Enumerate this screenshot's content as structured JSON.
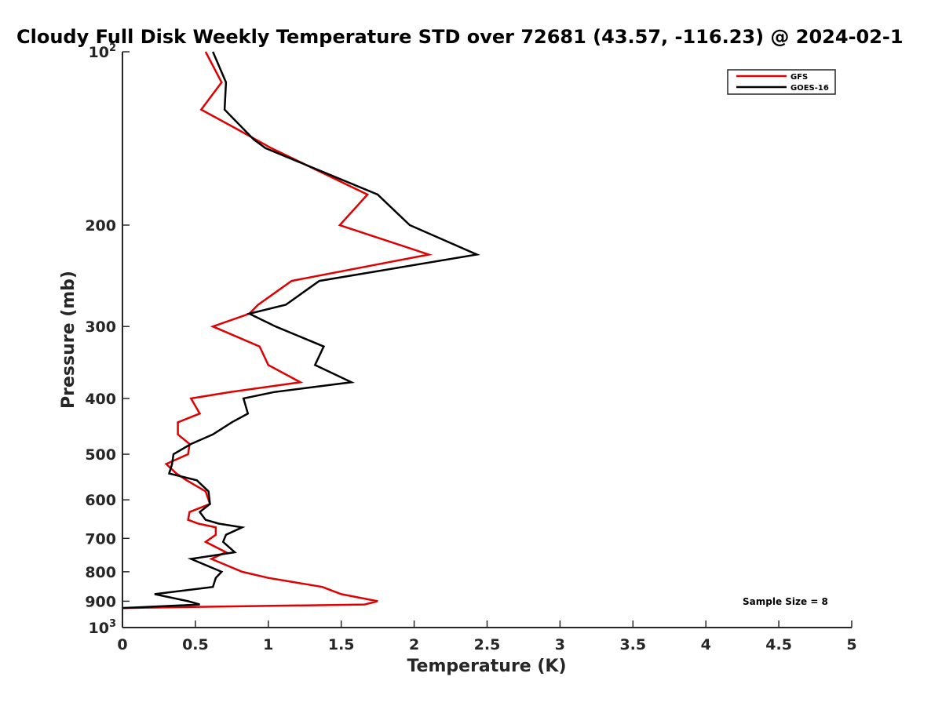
{
  "chart_data": {
    "type": "line",
    "title": "Cloudy Full Disk Weekly Temperature STD over 72681 (43.57, -116.23) @ 2024-02-1",
    "xlabel": "Temperature (K)",
    "ylabel": "Pressure (mb)",
    "xlim": [
      0,
      5
    ],
    "ylim": [
      100,
      1000
    ],
    "yscale": "log",
    "y_reversed": true,
    "grid": false,
    "legend_position": "top-right",
    "x_ticks": [
      0,
      0.5,
      1,
      1.5,
      2,
      2.5,
      3,
      3.5,
      4,
      4.5,
      5
    ],
    "x_tick_labels": [
      "0",
      "0.5",
      "1",
      "1.5",
      "2",
      "2.5",
      "3",
      "3.5",
      "4",
      "4.5",
      "5"
    ],
    "y_ticks": [
      {
        "value": 100,
        "base": "10",
        "exp": "2"
      },
      {
        "value": 200,
        "label": "200"
      },
      {
        "value": 300,
        "label": "300"
      },
      {
        "value": 400,
        "label": "400"
      },
      {
        "value": 500,
        "label": "500"
      },
      {
        "value": 600,
        "label": "600"
      },
      {
        "value": 700,
        "label": "700"
      },
      {
        "value": 800,
        "label": "800"
      },
      {
        "value": 900,
        "label": "900"
      },
      {
        "value": 1000,
        "base": "10",
        "exp": "3"
      }
    ],
    "annotation": "Sample Size = 8",
    "series": [
      {
        "name": "GFS",
        "color": "#e00000",
        "points": [
          [
            0.57,
            100
          ],
          [
            0.68,
            113
          ],
          [
            0.54,
            126
          ],
          [
            0.78,
            136
          ],
          [
            1.02,
            147
          ],
          [
            1.68,
            177
          ],
          [
            1.49,
            200
          ],
          [
            2.1,
            225
          ],
          [
            1.16,
            250
          ],
          [
            0.93,
            275
          ],
          [
            0.87,
            285
          ],
          [
            0.62,
            300
          ],
          [
            0.94,
            325
          ],
          [
            1.0,
            350
          ],
          [
            1.22,
            375
          ],
          [
            0.74,
            390
          ],
          [
            0.47,
            400
          ],
          [
            0.53,
            425
          ],
          [
            0.38,
            440
          ],
          [
            0.38,
            462
          ],
          [
            0.46,
            480
          ],
          [
            0.45,
            500
          ],
          [
            0.3,
            520
          ],
          [
            0.37,
            540
          ],
          [
            0.44,
            555
          ],
          [
            0.57,
            580
          ],
          [
            0.6,
            610
          ],
          [
            0.46,
            630
          ],
          [
            0.45,
            650
          ],
          [
            0.52,
            660
          ],
          [
            0.64,
            670
          ],
          [
            0.64,
            690
          ],
          [
            0.57,
            710
          ],
          [
            0.71,
            740
          ],
          [
            0.61,
            760
          ],
          [
            0.82,
            800
          ],
          [
            1.0,
            820
          ],
          [
            1.37,
            850
          ],
          [
            1.5,
            875
          ],
          [
            1.75,
            900
          ],
          [
            1.66,
            912
          ],
          [
            0,
            925
          ]
        ]
      },
      {
        "name": "GOES-16",
        "color": "#000000",
        "points": [
          [
            0.62,
            100
          ],
          [
            0.71,
            113
          ],
          [
            0.7,
            126
          ],
          [
            0.9,
            142
          ],
          [
            0.98,
            147
          ],
          [
            1.75,
            177
          ],
          [
            1.97,
            200
          ],
          [
            2.43,
            225
          ],
          [
            1.35,
            250
          ],
          [
            1.12,
            275
          ],
          [
            0.87,
            285
          ],
          [
            1.05,
            300
          ],
          [
            1.38,
            325
          ],
          [
            1.32,
            350
          ],
          [
            1.57,
            375
          ],
          [
            1.04,
            390
          ],
          [
            0.83,
            400
          ],
          [
            0.86,
            425
          ],
          [
            0.75,
            440
          ],
          [
            0.62,
            462
          ],
          [
            0.47,
            480
          ],
          [
            0.35,
            500
          ],
          [
            0.34,
            520
          ],
          [
            0.32,
            540
          ],
          [
            0.51,
            555
          ],
          [
            0.59,
            580
          ],
          [
            0.6,
            610
          ],
          [
            0.53,
            630
          ],
          [
            0.57,
            650
          ],
          [
            0.66,
            660
          ],
          [
            0.82,
            670
          ],
          [
            0.71,
            690
          ],
          [
            0.69,
            710
          ],
          [
            0.77,
            740
          ],
          [
            0.47,
            760
          ],
          [
            0.68,
            800
          ],
          [
            0.64,
            820
          ],
          [
            0.62,
            850
          ],
          [
            0.22,
            875
          ],
          [
            0.45,
            900
          ],
          [
            0.53,
            912
          ],
          [
            0,
            925
          ]
        ]
      }
    ]
  }
}
